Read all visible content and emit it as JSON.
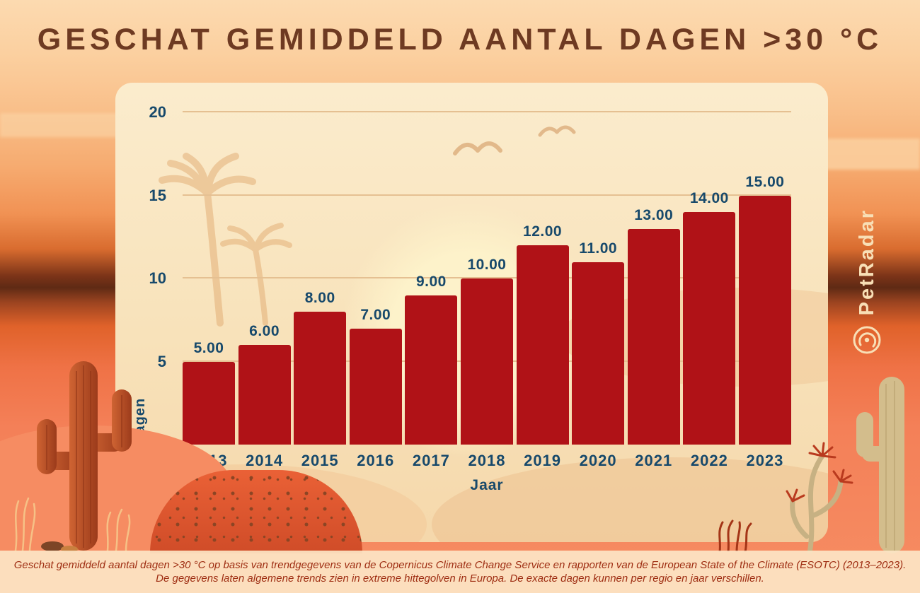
{
  "page": {
    "brand": "PetRadar",
    "footer_line1": "Geschat gemiddeld aantal dagen >30 °C op basis van trendgegevens van de Copernicus Climate Change Service en rapporten van de European State of the Climate (ESOTC) (2013–2023).",
    "footer_line2": "De gegevens laten algemene trends zien in extreme hittegolven in Europa. De exacte dagen kunnen per regio en jaar verschillen."
  },
  "chart_data": {
    "type": "bar",
    "title": "GESCHAT GEMIDDELD AANTAL DAGEN >30 °C",
    "categories": [
      "2013",
      "2014",
      "2015",
      "2016",
      "2017",
      "2018",
      "2019",
      "2020",
      "2021",
      "2022",
      "2023"
    ],
    "values": [
      5,
      6,
      8,
      7,
      9,
      10,
      12,
      11,
      13,
      14,
      15
    ],
    "value_labels": [
      "5.00",
      "6.00",
      "8.00",
      "7.00",
      "9.00",
      "10.00",
      "12.00",
      "11.00",
      "13.00",
      "14.00",
      "15.00"
    ],
    "xlabel": "Jaar",
    "ylabel": "Dagen",
    "ylim": [
      0,
      20
    ],
    "yticks": [
      0,
      5,
      10,
      15,
      20
    ],
    "grid": true,
    "legend": "none",
    "bar_color": "#b01217",
    "label_color": "#17496b"
  },
  "colors": {
    "title_text": "#6e3a22",
    "panel_background": "#f8e2ba",
    "page_background_top": "#fcdab0",
    "page_background_bottom": "#f68d63",
    "footer_text": "#9e2d12",
    "brand_text": "#f8dfb6",
    "gridline": "#e5c092"
  }
}
